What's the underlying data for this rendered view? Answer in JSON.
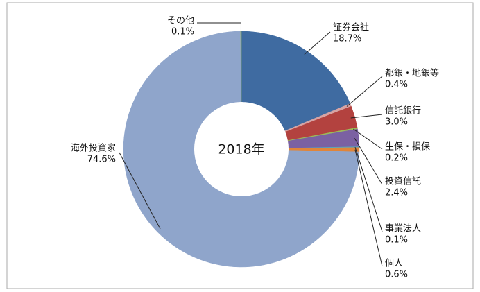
{
  "chart_data": {
    "type": "donut",
    "center_label": "2018年",
    "categories": [
      "証券会社",
      "都銀・地銀等",
      "信託銀行",
      "生保・損保",
      "投資信託",
      "事業法人",
      "個人",
      "海外投資家",
      "その他"
    ],
    "values": [
      18.7,
      0.4,
      3.0,
      0.2,
      2.4,
      0.1,
      0.6,
      74.6,
      0.1
    ],
    "value_labels": [
      "18.7%",
      "0.4%",
      "3.0%",
      "0.2%",
      "2.4%",
      "0.1%",
      "0.6%",
      "74.6%",
      "0.1%"
    ],
    "colors": [
      "#3f6ba1",
      "#d7a3a3",
      "#b3423f",
      "#9bbb59",
      "#7b61a2",
      "#4bacc6",
      "#e0853a",
      "#8fa5cb",
      "#9bbb59"
    ]
  }
}
